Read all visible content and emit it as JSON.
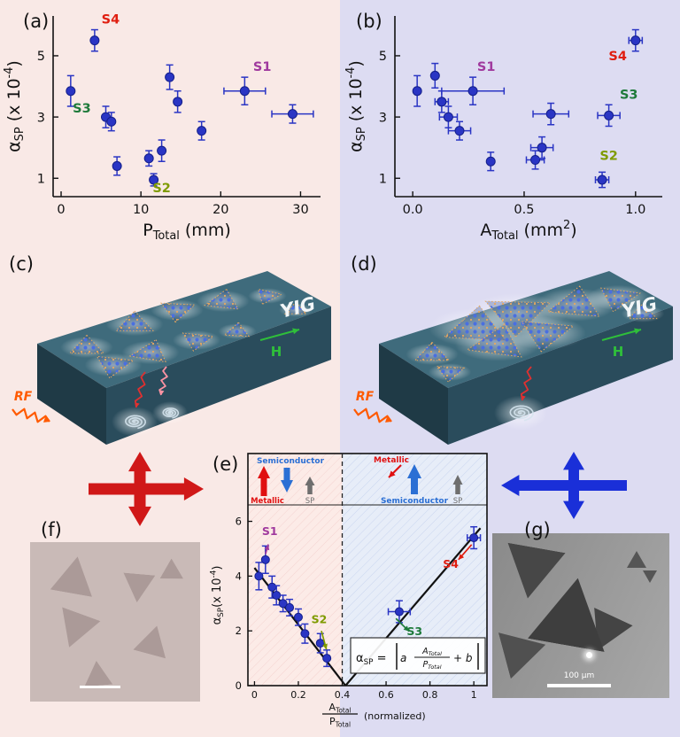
{
  "figure": {
    "panel_labels": {
      "a": "(a)",
      "b": "(b)",
      "c": "(c)",
      "d": "(d)",
      "e": "(e)",
      "f": "(f)",
      "g": "(g)"
    }
  },
  "colors": {
    "bg_left": "#f9e9e6",
    "bg_right": "#dddcf2",
    "point": "#2a35c4",
    "point_edge": "#141f8a",
    "s1": "#a03a9e",
    "s2": "#7f9b00",
    "s3": "#1e7a3a",
    "s4": "#e01e10",
    "fit": "#111111",
    "red_arrow": "#d01818",
    "blue_arrow": "#1a2fd8",
    "metallic": "#e01010",
    "semiconductor": "#2b6fd4",
    "sp_gray": "#6e6e6e",
    "panel_e_left_bg": "#fcebe7",
    "panel_e_right_bg": "#e7edf8",
    "slab_top": "#3f6b7c",
    "slab_front": "#1f3a46",
    "slab_side": "#2a4c5c",
    "atom_blue": "#4a6fe0",
    "atom_orange": "#e8a85e",
    "yig_text": "#f2f6f8",
    "h_green": "#2fbf3a",
    "rf_orange": "#ff5a00",
    "sem_f_bg": "#c9bab7",
    "sem_f_tri": "#ab9a98",
    "sem_g_bg1": "#8a8a8a",
    "sem_g_bg2": "#a8a8a8",
    "sem_g_tri": "#4a4a4a",
    "scalebar": "#ffffff"
  },
  "illustration": {
    "yig": "YIG",
    "h": "H",
    "rf": "RF"
  },
  "band": {
    "left_semiconductor": "Semiconductor",
    "left_metallic": "Metallic",
    "left_sp": "SP",
    "right_metallic": "Metallic",
    "right_semiconductor": "Semiconductor",
    "right_sp": "SP"
  },
  "formula": {
    "lhs": [
      {
        "t": "α"
      },
      {
        "t": "SP",
        "s": "sub"
      },
      {
        "t": " = "
      }
    ],
    "a": "a",
    "num": [
      {
        "t": "A"
      },
      {
        "t": "Total",
        "s": "sub"
      }
    ],
    "den": [
      {
        "t": "P"
      },
      {
        "t": "Total",
        "s": "sub"
      }
    ],
    "tail": "+ b"
  },
  "sem": {
    "g_scalebar": "100 μm"
  },
  "chart_data": [
    {
      "panel": "a",
      "type": "scatter",
      "xlabel_parts": [
        {
          "t": "P"
        },
        {
          "t": "Total",
          "s": "sub"
        },
        {
          "t": " (mm)"
        }
      ],
      "ylabel_parts": [
        {
          "t": "α"
        },
        {
          "t": "SP",
          "s": "sub"
        },
        {
          "t": " (x 10"
        },
        {
          "t": "-4",
          "s": "sup"
        },
        {
          "t": ")"
        }
      ],
      "xlim": [
        -1,
        32.5
      ],
      "ylim": [
        0.4,
        6.3
      ],
      "xticks": [
        0,
        10,
        20,
        30
      ],
      "xtick_labels": [
        "0",
        "10",
        "20",
        "30"
      ],
      "yticks": [
        1,
        3,
        5
      ],
      "ytick_labels": [
        "1",
        "3",
        "5"
      ],
      "points": [
        {
          "x": 1.2,
          "y": 3.85,
          "ey": 0.5
        },
        {
          "x": 4.2,
          "y": 5.5,
          "ey": 0.35,
          "label": "S4",
          "lc": "s4",
          "lx": 6.2,
          "ly": 6.05
        },
        {
          "x": 5.6,
          "y": 3.0,
          "ey": 0.35,
          "label": "S3",
          "lc": "s3",
          "lx": 2.6,
          "ly": 3.15
        },
        {
          "x": 6.3,
          "y": 2.85,
          "ey": 0.3
        },
        {
          "x": 7.0,
          "y": 1.4,
          "ey": 0.3
        },
        {
          "x": 11.0,
          "y": 1.65,
          "ey": 0.25
        },
        {
          "x": 11.6,
          "y": 0.95,
          "ey": 0.2,
          "label": "S2",
          "lc": "s2",
          "lx": 12.6,
          "ly": 0.55
        },
        {
          "x": 12.6,
          "y": 1.9,
          "ey": 0.35
        },
        {
          "x": 13.6,
          "y": 4.3,
          "ey": 0.4
        },
        {
          "x": 14.6,
          "y": 3.5,
          "ey": 0.35
        },
        {
          "x": 17.6,
          "y": 2.55,
          "ey": 0.3
        },
        {
          "x": 23.0,
          "y": 3.85,
          "ey": 0.45,
          "ex": 2.6,
          "label": "S1",
          "lc": "s1",
          "lx": 25.2,
          "ly": 4.5
        },
        {
          "x": 29.0,
          "y": 3.1,
          "ey": 0.3,
          "ex": 2.6
        }
      ]
    },
    {
      "panel": "b",
      "type": "scatter",
      "xlabel_parts": [
        {
          "t": "A"
        },
        {
          "t": "Total",
          "s": "sub"
        },
        {
          "t": " (mm"
        },
        {
          "t": "2",
          "s": "sup"
        },
        {
          "t": ")"
        }
      ],
      "ylabel_parts": [
        {
          "t": "α"
        },
        {
          "t": "SP",
          "s": "sub"
        },
        {
          "t": " (x 10"
        },
        {
          "t": "-4",
          "s": "sup"
        },
        {
          "t": ")"
        }
      ],
      "xlim": [
        -0.08,
        1.12
      ],
      "ylim": [
        0.4,
        6.3
      ],
      "xticks": [
        0,
        0.5,
        1.0
      ],
      "xtick_labels": [
        "0.0",
        "0.5",
        "1.0"
      ],
      "yticks": [
        1,
        3,
        5
      ],
      "ytick_labels": [
        "1",
        "3",
        "5"
      ],
      "points": [
        {
          "x": 0.02,
          "y": 3.85,
          "ey": 0.5
        },
        {
          "x": 0.1,
          "y": 4.35,
          "ey": 0.4
        },
        {
          "x": 0.13,
          "y": 3.5,
          "ey": 0.35,
          "ex": 0.03
        },
        {
          "x": 0.16,
          "y": 3.0,
          "ey": 0.35,
          "ex": 0.04
        },
        {
          "x": 0.21,
          "y": 2.55,
          "ey": 0.3,
          "ex": 0.05
        },
        {
          "x": 0.27,
          "y": 3.85,
          "ey": 0.45,
          "ex": 0.14,
          "label": "S1",
          "lc": "s1",
          "lx": 0.33,
          "ly": 4.5
        },
        {
          "x": 0.35,
          "y": 1.55,
          "ey": 0.3
        },
        {
          "x": 0.55,
          "y": 1.6,
          "ey": 0.3,
          "ex": 0.04
        },
        {
          "x": 0.58,
          "y": 2.0,
          "ey": 0.35,
          "ex": 0.05
        },
        {
          "x": 0.62,
          "y": 3.1,
          "ey": 0.35,
          "ex": 0.08
        },
        {
          "x": 0.85,
          "y": 0.95,
          "ey": 0.25,
          "ex": 0.03,
          "label": "S2",
          "lc": "s2",
          "lx": 0.88,
          "ly": 1.6
        },
        {
          "x": 0.88,
          "y": 3.05,
          "ey": 0.35,
          "ex": 0.05,
          "label": "S3",
          "lc": "s3",
          "lx": 0.97,
          "ly": 3.6
        },
        {
          "x": 1.0,
          "y": 5.5,
          "ey": 0.35,
          "ex": 0.03,
          "label": "S4",
          "lc": "s4",
          "lx": 0.92,
          "ly": 4.85
        }
      ]
    },
    {
      "panel": "e",
      "type": "scatter",
      "xlabel_num": [
        {
          "t": "A"
        },
        {
          "t": "Total",
          "s": "sub"
        }
      ],
      "xlabel_den": [
        {
          "t": "P"
        },
        {
          "t": "Total",
          "s": "sub"
        }
      ],
      "xlabel_suffix": "(normalized)",
      "ylabel_parts": [
        {
          "t": "α"
        },
        {
          "t": "SP",
          "s": "sub"
        },
        {
          "t": "(x 10"
        },
        {
          "t": "-4",
          "s": "sup"
        },
        {
          "t": ")"
        }
      ],
      "xlim": [
        -0.03,
        1.06
      ],
      "ylim": [
        0,
        6.6
      ],
      "xticks": [
        0,
        0.2,
        0.4,
        0.6,
        0.8,
        1
      ],
      "xtick_labels": [
        "0",
        "0.2",
        "0.4",
        "0.6",
        "0.8",
        "1"
      ],
      "yticks": [
        0,
        2,
        4,
        6
      ],
      "ytick_labels": [
        "0",
        "2",
        "4",
        "6"
      ],
      "divider_x": 0.4,
      "fit": [
        {
          "x1": 0.0,
          "y1": 4.3,
          "x2": 0.415,
          "y2": 0.0
        },
        {
          "x1": 0.415,
          "y1": 0.0,
          "x2": 1.03,
          "y2": 5.75
        }
      ],
      "points": [
        {
          "x": 0.02,
          "y": 4.0,
          "ey": 0.5
        },
        {
          "x": 0.05,
          "y": 4.6,
          "ey": 0.5
        },
        {
          "x": 0.08,
          "y": 3.6,
          "ey": 0.4
        },
        {
          "x": 0.1,
          "y": 3.3,
          "ey": 0.35
        },
        {
          "x": 0.13,
          "y": 3.0,
          "ey": 0.3
        },
        {
          "x": 0.16,
          "y": 2.85,
          "ey": 0.3
        },
        {
          "x": 0.2,
          "y": 2.5,
          "ey": 0.3
        },
        {
          "x": 0.23,
          "y": 1.9,
          "ey": 0.35
        },
        {
          "x": 0.3,
          "y": 1.55,
          "ey": 0.35
        },
        {
          "x": 0.33,
          "y": 1.0,
          "ey": 0.3
        },
        {
          "x": 0.66,
          "y": 2.7,
          "ey": 0.4,
          "ex": 0.05
        },
        {
          "x": 1.0,
          "y": 5.4,
          "ey": 0.4,
          "ex": 0.03
        }
      ],
      "annotations": [
        {
          "text": "S1",
          "color": "s1",
          "tx": 0.07,
          "ty": 5.5,
          "x1": 0.05,
          "y1": 4.8,
          "x2": 0.063,
          "y2": 5.16
        },
        {
          "text": "S2",
          "color": "s2",
          "tx": 0.295,
          "ty": 2.28,
          "x1": 0.305,
          "y1": 2.0,
          "x2": 0.328,
          "y2": 1.32
        },
        {
          "text": "S3",
          "color": "s3",
          "tx": 0.73,
          "ty": 1.85,
          "x1": 0.645,
          "y1": 2.45,
          "x2": 0.705,
          "y2": 1.98
        },
        {
          "text": "S4",
          "color": "s4",
          "tx": 0.895,
          "ty": 4.3,
          "x1": 0.99,
          "y1": 5.15,
          "x2": 0.93,
          "y2": 4.6
        }
      ]
    }
  ]
}
